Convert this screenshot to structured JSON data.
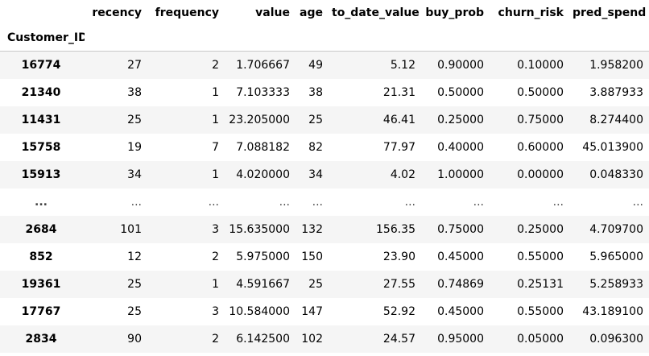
{
  "table": {
    "index_name": "Customer_ID",
    "columns": [
      "recency",
      "frequency",
      "value",
      "age",
      "to_date_value",
      "buy_prob",
      "churn_risk",
      "pred_spend"
    ],
    "rows": [
      {
        "id": "16774",
        "cells": [
          "27",
          "2",
          "1.706667",
          "49",
          "5.12",
          "0.90000",
          "0.10000",
          "1.958200"
        ]
      },
      {
        "id": "21340",
        "cells": [
          "38",
          "1",
          "7.103333",
          "38",
          "21.31",
          "0.50000",
          "0.50000",
          "3.887933"
        ]
      },
      {
        "id": "11431",
        "cells": [
          "25",
          "1",
          "23.205000",
          "25",
          "46.41",
          "0.25000",
          "0.75000",
          "8.274400"
        ]
      },
      {
        "id": "15758",
        "cells": [
          "19",
          "7",
          "7.088182",
          "82",
          "77.97",
          "0.40000",
          "0.60000",
          "45.013900"
        ]
      },
      {
        "id": "15913",
        "cells": [
          "34",
          "1",
          "4.020000",
          "34",
          "4.02",
          "1.00000",
          "0.00000",
          "0.048330"
        ]
      },
      {
        "id": "...",
        "cells": [
          "...",
          "...",
          "...",
          "...",
          "...",
          "...",
          "...",
          "..."
        ]
      },
      {
        "id": "2684",
        "cells": [
          "101",
          "3",
          "15.635000",
          "132",
          "156.35",
          "0.75000",
          "0.25000",
          "4.709700"
        ]
      },
      {
        "id": "852",
        "cells": [
          "12",
          "2",
          "5.975000",
          "150",
          "23.90",
          "0.45000",
          "0.55000",
          "5.965000"
        ]
      },
      {
        "id": "19361",
        "cells": [
          "25",
          "1",
          "4.591667",
          "25",
          "27.55",
          "0.74869",
          "0.25131",
          "5.258933"
        ]
      },
      {
        "id": "17767",
        "cells": [
          "25",
          "3",
          "10.584000",
          "147",
          "52.92",
          "0.45000",
          "0.55000",
          "43.189100"
        ]
      },
      {
        "id": "2834",
        "cells": [
          "90",
          "2",
          "6.142500",
          "102",
          "24.57",
          "0.95000",
          "0.05000",
          "0.096300"
        ]
      }
    ]
  },
  "colors": {
    "stripe": "#f5f5f5",
    "background": "#ffffff",
    "header_rule": "#c8c8c8"
  }
}
